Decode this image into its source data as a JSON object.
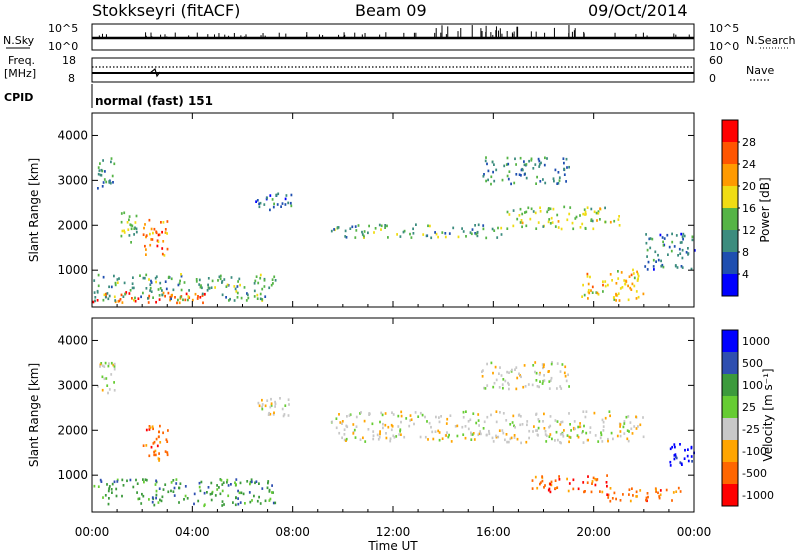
{
  "header": {
    "station": "Stokkseyri (fitACF)",
    "beam": "Beam 09",
    "date": "09/Oct/2014",
    "cpid_label": "CPID",
    "cpid_value": "normal (fast) 151"
  },
  "strip_panels": {
    "nsky_label": "N.Sky",
    "nsearch_label": "N.Search",
    "noise_ticks": [
      "10^5",
      "10^0"
    ],
    "freq_label_1": "Freq.",
    "freq_label_2": "[MHz]",
    "freq_ticks": [
      "18",
      "8"
    ],
    "nave_label": "Nave",
    "nave_ticks": [
      "60",
      "0"
    ]
  },
  "colors": {
    "power_scale": [
      "#0000ff",
      "#1f4fb0",
      "#3c8c7e",
      "#55b446",
      "#f0dc14",
      "#ff9a00",
      "#ff5500",
      "#ff0000"
    ],
    "velocity_scale": [
      "#0000ff",
      "#2f4fb0",
      "#3c9a3c",
      "#66cc33",
      "#c8c8c8",
      "#ffa500",
      "#ff6600",
      "#ff0000"
    ],
    "ground_scatter": "#bebebe"
  },
  "chart_data": [
    {
      "type": "heatmap",
      "name": "power-panel",
      "ylabel": "Slant Range [km]",
      "yticks": [
        "4000",
        "3000",
        "2000",
        "1000"
      ],
      "ylim": [
        180,
        4500
      ],
      "colorbar_label": "Power [dB]",
      "colorbar_ticks": [
        "28",
        "24",
        "20",
        "16",
        "12",
        "8",
        "4"
      ],
      "colorbar_range": [
        0,
        32
      ],
      "patches": [
        {
          "t0": 0.0,
          "t1": 4.5,
          "r0": 250,
          "r1": 500,
          "v": 26
        },
        {
          "t0": 0.0,
          "t1": 7.3,
          "r0": 300,
          "r1": 900,
          "v": 12
        },
        {
          "t0": 0.2,
          "t1": 0.9,
          "r0": 2800,
          "r1": 3500,
          "v": 10
        },
        {
          "t0": 2.0,
          "t1": 3.0,
          "r0": 1300,
          "r1": 2100,
          "v": 24
        },
        {
          "t0": 1.1,
          "t1": 1.8,
          "r0": 1600,
          "r1": 2300,
          "v": 14
        },
        {
          "t0": 6.5,
          "t1": 8.0,
          "r0": 2300,
          "r1": 2700,
          "v": 8
        },
        {
          "t0": 9.5,
          "t1": 16.5,
          "r0": 1700,
          "r1": 2000,
          "v": 12
        },
        {
          "t0": 16.5,
          "t1": 21.0,
          "r0": 1900,
          "r1": 2400,
          "v": 16
        },
        {
          "t0": 15.5,
          "t1": 19.0,
          "r0": 2900,
          "r1": 3500,
          "v": 10
        },
        {
          "t0": 19.5,
          "t1": 22.0,
          "r0": 300,
          "r1": 1000,
          "v": 20
        },
        {
          "t0": 22.0,
          "t1": 24.0,
          "r0": 1000,
          "r1": 1800,
          "v": 8
        }
      ]
    },
    {
      "type": "heatmap",
      "name": "velocity-panel",
      "xlabel": "Time UT",
      "xticks": [
        "00:00",
        "04:00",
        "08:00",
        "12:00",
        "16:00",
        "20:00",
        "00:00"
      ],
      "xlim": [
        0,
        24
      ],
      "ylabel": "Slant Range [km]",
      "yticks": [
        "4000",
        "3000",
        "2000",
        "1000"
      ],
      "ylim": [
        180,
        4500
      ],
      "colorbar_label": "Velocity [m s⁻¹]",
      "colorbar_ticks": [
        "1000",
        "500",
        "100",
        "25",
        "-25",
        "-100",
        "-500",
        "-1000"
      ],
      "patches": [
        {
          "t0": 0.0,
          "t1": 7.3,
          "r0": 300,
          "r1": 900,
          "c": 2
        },
        {
          "t0": 0.2,
          "t1": 0.9,
          "r0": 2800,
          "r1": 3500,
          "c": 4
        },
        {
          "t0": 2.0,
          "t1": 3.0,
          "r0": 1300,
          "r1": 2100,
          "c": 6
        },
        {
          "t0": 6.5,
          "t1": 8.0,
          "r0": 2300,
          "r1": 2700,
          "c": 4
        },
        {
          "t0": 9.5,
          "t1": 22.0,
          "r0": 1700,
          "r1": 2400,
          "c": 4
        },
        {
          "t0": 15.5,
          "t1": 19.0,
          "r0": 2900,
          "r1": 3500,
          "c": 4
        },
        {
          "t0": 17.5,
          "t1": 20.5,
          "r0": 600,
          "r1": 1000,
          "c": 6
        },
        {
          "t0": 20.5,
          "t1": 23.5,
          "r0": 400,
          "r1": 700,
          "c": 6
        },
        {
          "t0": 23.0,
          "t1": 24.0,
          "r0": 1200,
          "r1": 1700,
          "c": 0
        }
      ]
    }
  ]
}
